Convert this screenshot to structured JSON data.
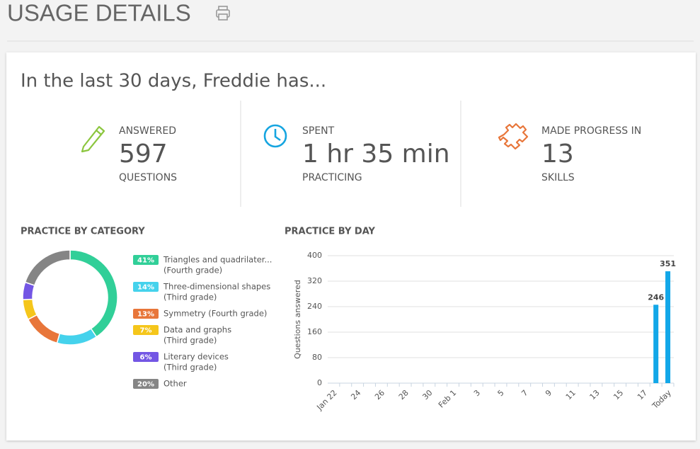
{
  "header": {
    "title": "USAGE DETAILS"
  },
  "summary": {
    "sentence": "In the last 30 days, Freddie has...",
    "stats": [
      {
        "label": "ANSWERED",
        "value": 597,
        "unit": "QUESTIONS"
      },
      {
        "label": "SPENT",
        "value": "1 hr 35 min",
        "unit": "PRACTICING"
      },
      {
        "label": "MADE PROGRESS IN",
        "value": 13,
        "unit": "SKILLS"
      }
    ]
  },
  "chart_data": [
    {
      "type": "donut",
      "title": "PRACTICE BY CATEGORY",
      "categories": [
        "Triangles and quadrilater...",
        "Three-dimensional shapes",
        "Symmetry (Fourth grade)",
        "Data and graphs",
        "Literary devices",
        "Other"
      ],
      "subtitles": [
        "(Fourth grade)",
        "(Third grade)",
        null,
        "(Third grade)",
        "(Third grade)",
        null
      ],
      "values": [
        41,
        14,
        13,
        7,
        6,
        20
      ],
      "value_labels": [
        "41%",
        "14%",
        "13%",
        "7%",
        "6%",
        "20%"
      ],
      "colors": [
        "#31cf98",
        "#45d2ec",
        "#e8763a",
        "#f5c61b",
        "#7356e4",
        "#858585"
      ]
    },
    {
      "type": "bar",
      "title": "PRACTICE BY DAY",
      "ylabel": "Questions answered",
      "categories": [
        "Jan 22",
        null,
        "24",
        null,
        "26",
        null,
        "28",
        null,
        "30",
        null,
        "Feb 1",
        null,
        "3",
        null,
        "5",
        null,
        "7",
        null,
        "9",
        null,
        "11",
        null,
        "13",
        null,
        "15",
        null,
        "17",
        null,
        "Today"
      ],
      "values": [
        0,
        0,
        0,
        0,
        0,
        0,
        0,
        0,
        0,
        0,
        0,
        0,
        0,
        0,
        0,
        0,
        0,
        0,
        0,
        0,
        0,
        0,
        0,
        0,
        0,
        0,
        0,
        246,
        351
      ],
      "color": "#12a7e8",
      "ylim": [
        0,
        400
      ],
      "yticks": [
        0,
        80,
        160,
        240,
        320,
        400
      ],
      "grid": true
    }
  ]
}
